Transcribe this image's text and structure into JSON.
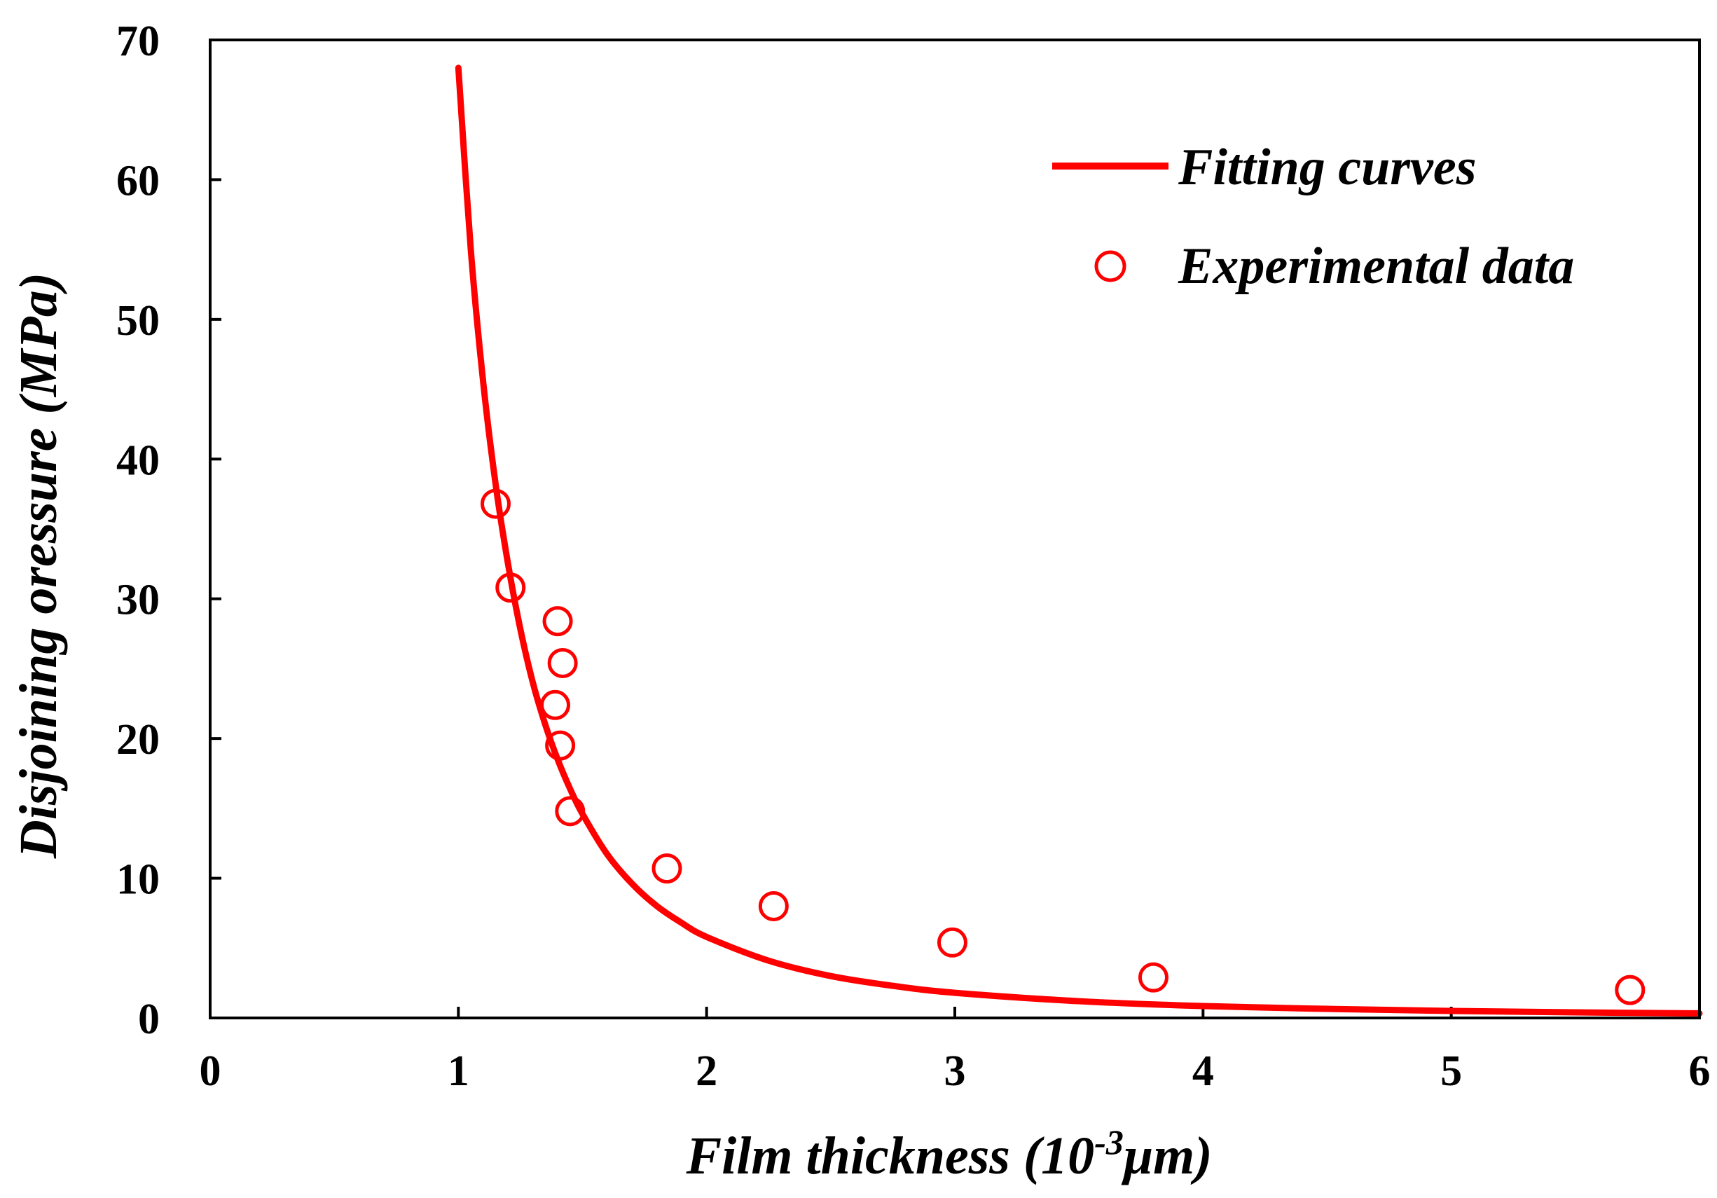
{
  "chart_data": {
    "type": "scatter",
    "title": "",
    "xlabel": {
      "prefix": "Film thickness (10",
      "superscript": "-3",
      "suffix": "μm)"
    },
    "ylabel": "Disjoining oressure (MPa)",
    "xlim": [
      0,
      6
    ],
    "ylim": [
      0,
      70
    ],
    "xticks": [
      0,
      1,
      2,
      3,
      4,
      5,
      6
    ],
    "yticks": [
      0,
      10,
      20,
      30,
      40,
      50,
      60,
      70
    ],
    "grid": false,
    "legend_position": "top-right",
    "colors": {
      "series": "#ff0000",
      "axis": "#000000",
      "background": "#ffffff"
    },
    "series": [
      {
        "name": "Fitting curves",
        "kind": "line",
        "x": [
          1.0,
          1.05,
          1.1,
          1.15,
          1.2,
          1.25,
          1.3,
          1.35,
          1.4,
          1.45,
          1.5,
          1.6,
          1.7,
          1.8,
          1.9,
          2.0,
          2.25,
          2.5,
          2.75,
          3.0,
          3.5,
          4.0,
          4.5,
          5.0,
          5.5,
          6.0
        ],
        "y": [
          68.0,
          55.0,
          45.5,
          38.2,
          32.5,
          27.8,
          24.0,
          21.0,
          18.5,
          16.4,
          14.6,
          11.7,
          9.6,
          8.0,
          6.8,
          5.8,
          4.1,
          3.0,
          2.3,
          1.8,
          1.2,
          0.85,
          0.65,
          0.5,
          0.4,
          0.33
        ]
      },
      {
        "name": "Experimental data",
        "kind": "scatter",
        "marker": "open-circle",
        "x": [
          1.15,
          1.21,
          1.4,
          1.42,
          1.39,
          1.41,
          1.45,
          1.84,
          2.27,
          2.99,
          3.8,
          5.72
        ],
        "y": [
          36.8,
          30.8,
          28.4,
          25.4,
          22.4,
          19.5,
          14.8,
          10.7,
          8.0,
          5.4,
          2.9,
          2.0
        ]
      }
    ]
  }
}
